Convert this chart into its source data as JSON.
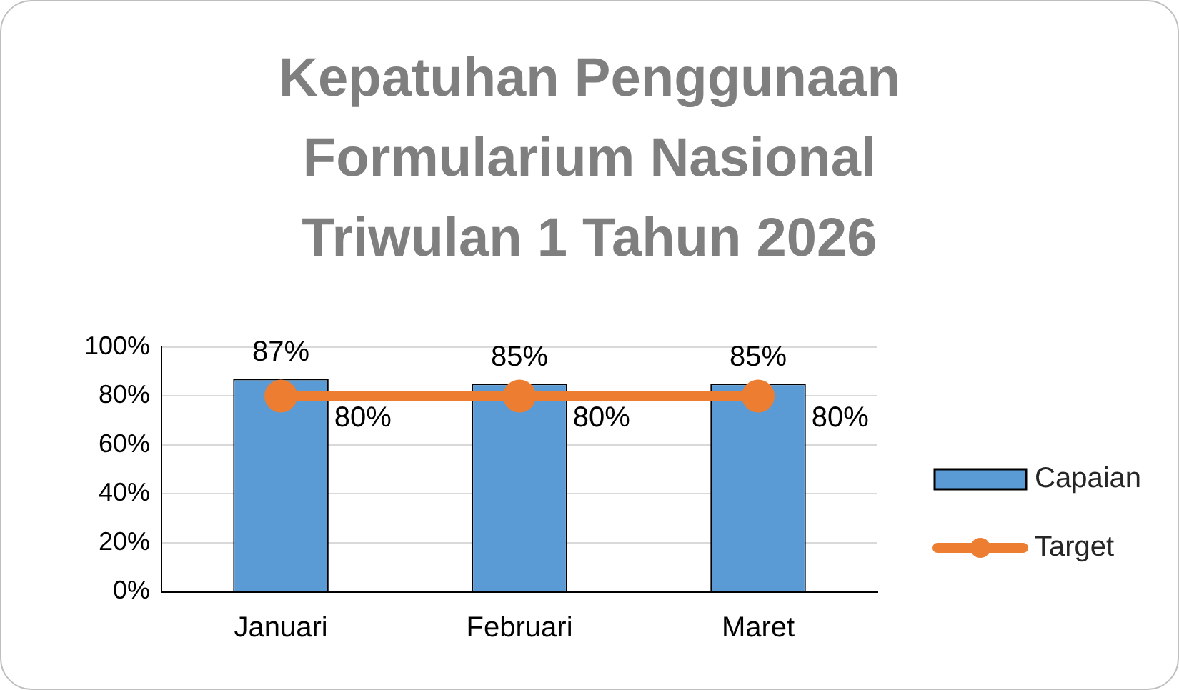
{
  "chart_data": {
    "type": "bar",
    "title": "Kepatuhan Penggunaan Formularium Nasional Triwulan 1 Tahun 2026",
    "categories": [
      "Januari",
      "Februari",
      "Maret"
    ],
    "series": [
      {
        "name": "Capaian",
        "color": "#5b9bd5",
        "values": [
          87,
          85,
          85
        ],
        "value_labels": [
          "87%",
          "85%",
          "85%"
        ]
      },
      {
        "name": "Target",
        "type": "line",
        "color": "#ed7d31",
        "values": [
          80,
          80,
          80
        ],
        "value_labels": [
          "80%",
          "80%",
          "80%"
        ]
      }
    ],
    "ylim": [
      0,
      100
    ],
    "yticks": [
      {
        "value": 0,
        "label": "0%"
      },
      {
        "value": 20,
        "label": "20%"
      },
      {
        "value": 40,
        "label": "40%"
      },
      {
        "value": 60,
        "label": "60%"
      },
      {
        "value": 80,
        "label": "80%"
      },
      {
        "value": 100,
        "label": "100%"
      }
    ],
    "grid": "y",
    "legend": "right",
    "marker": "circle",
    "line_style": "solid"
  }
}
